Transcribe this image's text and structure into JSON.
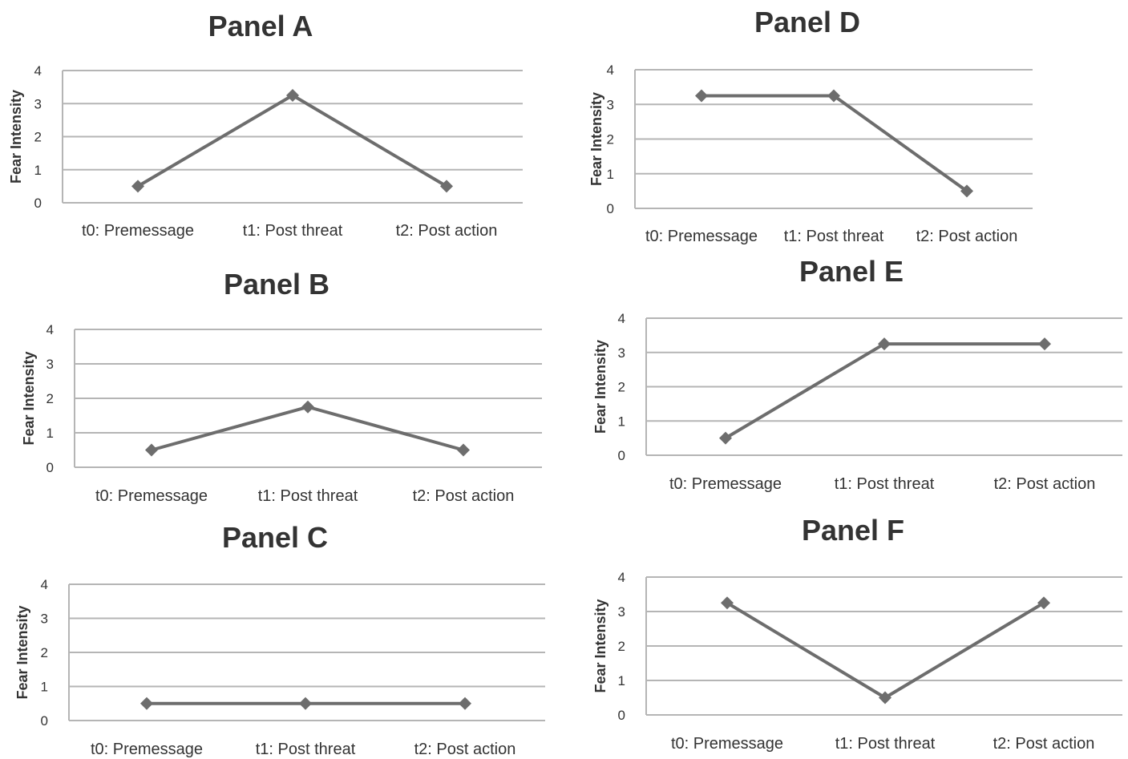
{
  "chart_data": [
    {
      "type": "line",
      "title": "Panel A",
      "ylabel": "Fear Intensity",
      "categories": [
        "t0: Premessage",
        "t1: Post threat",
        "t2: Post action"
      ],
      "series": [
        {
          "values": [
            0.5,
            3.25,
            0.5
          ]
        }
      ],
      "ylim": [
        0,
        4
      ],
      "yticks": [
        0,
        1,
        2,
        3,
        4
      ],
      "grid": true,
      "colors": {
        "line": "#6d6d6d",
        "grid": "#b5b5b5"
      }
    },
    {
      "type": "line",
      "title": "Panel B",
      "ylabel": "Fear Intensity",
      "categories": [
        "t0: Premessage",
        "t1: Post threat",
        "t2: Post action"
      ],
      "series": [
        {
          "values": [
            0.5,
            1.75,
            0.5
          ]
        }
      ],
      "ylim": [
        0,
        4
      ],
      "yticks": [
        0,
        1,
        2,
        3,
        4
      ],
      "grid": true,
      "colors": {
        "line": "#6d6d6d",
        "grid": "#b5b5b5"
      }
    },
    {
      "type": "line",
      "title": "Panel C",
      "ylabel": "Fear Intensity",
      "categories": [
        "t0: Premessage",
        "t1: Post threat",
        "t2: Post action"
      ],
      "series": [
        {
          "values": [
            0.5,
            0.5,
            0.5
          ]
        }
      ],
      "ylim": [
        0,
        4
      ],
      "yticks": [
        0,
        1,
        2,
        3,
        4
      ],
      "grid": true,
      "colors": {
        "line": "#6d6d6d",
        "grid": "#b5b5b5"
      }
    },
    {
      "type": "line",
      "title": "Panel D",
      "ylabel": "Fear Intensity",
      "categories": [
        "t0: Premessage",
        "t1: Post threat",
        "t2: Post action"
      ],
      "series": [
        {
          "values": [
            3.25,
            3.25,
            0.5
          ]
        }
      ],
      "ylim": [
        0,
        4
      ],
      "yticks": [
        0,
        1,
        2,
        3,
        4
      ],
      "grid": true,
      "colors": {
        "line": "#6d6d6d",
        "grid": "#b5b5b5"
      }
    },
    {
      "type": "line",
      "title": "Panel E",
      "ylabel": "Fear Intensity",
      "categories": [
        "t0: Premessage",
        "t1: Post threat",
        "t2: Post action"
      ],
      "series": [
        {
          "values": [
            0.5,
            3.25,
            3.25
          ]
        }
      ],
      "ylim": [
        0,
        4
      ],
      "yticks": [
        0,
        1,
        2,
        3,
        4
      ],
      "grid": true,
      "colors": {
        "line": "#6d6d6d",
        "grid": "#b5b5b5"
      }
    },
    {
      "type": "line",
      "title": "Panel F",
      "ylabel": "Fear Intensity",
      "categories": [
        "t0: Premessage",
        "t1: Post threat",
        "t2: Post action"
      ],
      "series": [
        {
          "values": [
            3.25,
            0.5,
            3.25
          ]
        }
      ],
      "ylim": [
        0,
        4
      ],
      "yticks": [
        0,
        1,
        2,
        3,
        4
      ],
      "grid": true,
      "colors": {
        "line": "#6d6d6d",
        "grid": "#b5b5b5"
      }
    }
  ]
}
